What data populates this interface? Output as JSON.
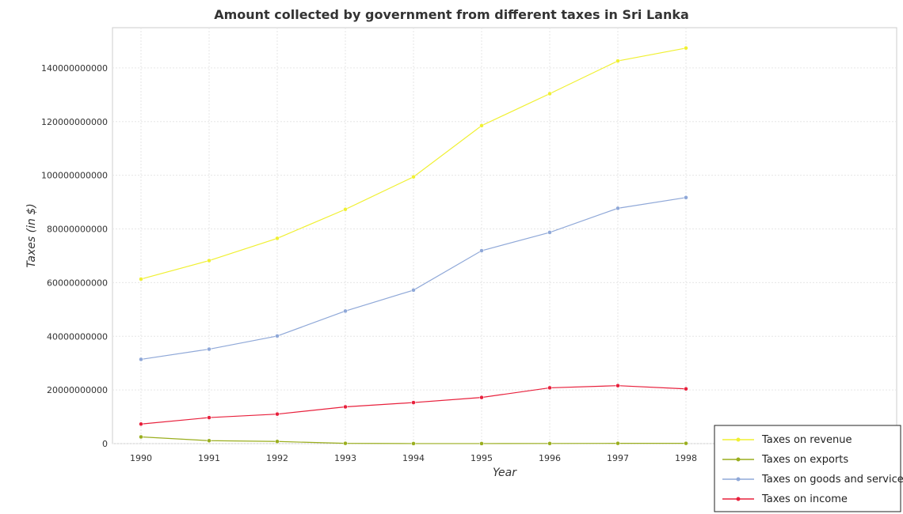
{
  "chart_data": {
    "type": "line",
    "title": "Amount collected by government from different taxes in Sri Lanka",
    "xlabel": "Year",
    "ylabel": "Taxes (in $)",
    "x": [
      "1990",
      "1991",
      "1992",
      "1993",
      "1994",
      "1995",
      "1996",
      "1997",
      "1998"
    ],
    "ylim": [
      0,
      155000000000
    ],
    "yticks": [
      0,
      20000000000,
      40000000000,
      60000000000,
      80000000000,
      100000000000,
      120000000000,
      140000000000
    ],
    "ytick_labels": [
      "0",
      "20000000000",
      "40000000000",
      "60000000000",
      "80000000000",
      "100000000000",
      "120000000000",
      "140000000000"
    ],
    "grid": true,
    "legend_position": "bottom-right",
    "series": [
      {
        "name": "Taxes on revenue",
        "color": "#f0f032",
        "values": [
          61300000000,
          68200000000,
          76500000000,
          87300000000,
          99400000000,
          118500000000,
          130400000000,
          142600000000,
          147400000000
        ]
      },
      {
        "name": "Taxes on exports",
        "color": "#9aae1e",
        "values": [
          2500000000,
          1100000000,
          800000000,
          100000000,
          20000000,
          20000000,
          50000000,
          100000000,
          100000000
        ]
      },
      {
        "name": "Taxes on goods and services",
        "color": "#8fa8d8",
        "values": [
          31400000000,
          35200000000,
          40100000000,
          49400000000,
          57200000000,
          71900000000,
          78700000000,
          87700000000,
          91700000000
        ]
      },
      {
        "name": "Taxes on income",
        "color": "#e8203c",
        "values": [
          7300000000,
          9700000000,
          11000000000,
          13700000000,
          15300000000,
          17200000000,
          20800000000,
          21600000000,
          20400000000
        ]
      }
    ]
  }
}
